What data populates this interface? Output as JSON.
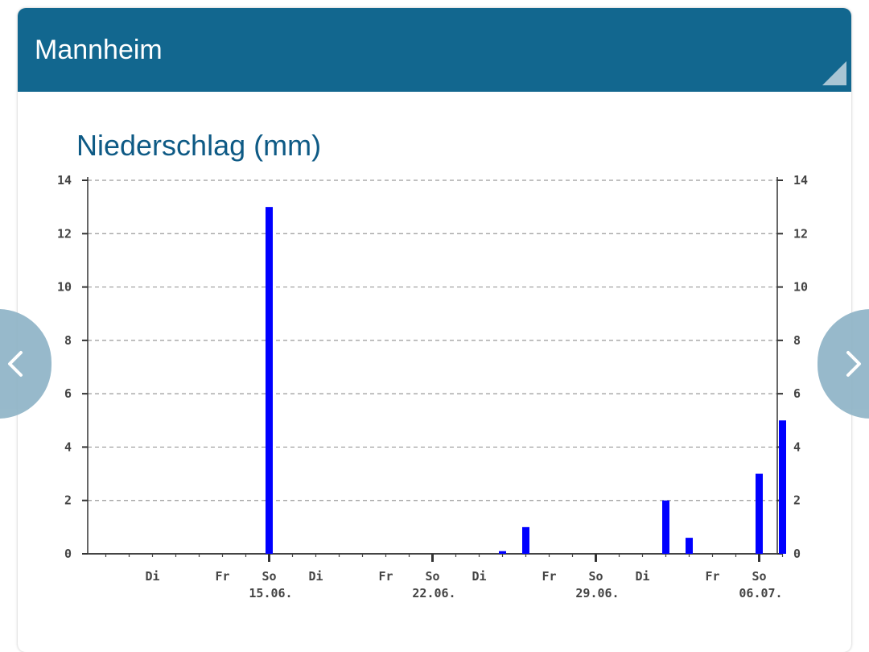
{
  "header": {
    "title": "Mannheim"
  },
  "chart_data": {
    "type": "bar",
    "title": "Niederschlag (mm)",
    "ylim": [
      0,
      14
    ],
    "yticks": [
      "0",
      "2",
      "4",
      "6",
      "8",
      "10",
      "12",
      "14"
    ],
    "grid": true,
    "x_tick_labels": [
      {
        "day": 3,
        "label": "Di"
      },
      {
        "day": 6,
        "label": "Fr"
      },
      {
        "day": 8,
        "label": "So",
        "date": "15.06."
      },
      {
        "day": 10,
        "label": "Di"
      },
      {
        "day": 13,
        "label": "Fr"
      },
      {
        "day": 15,
        "label": "So",
        "date": "22.06."
      },
      {
        "day": 17,
        "label": "Di"
      },
      {
        "day": 20,
        "label": "Fr"
      },
      {
        "day": 22,
        "label": "So",
        "date": "29.06."
      },
      {
        "day": 24,
        "label": "Di"
      },
      {
        "day": 27,
        "label": "Fr"
      },
      {
        "day": 29,
        "label": "So",
        "date": "06.07."
      }
    ],
    "values": [
      0,
      0,
      0,
      0,
      0,
      0,
      0,
      13,
      0,
      0,
      0,
      0,
      0,
      0,
      0,
      0,
      0,
      0.1,
      1.0,
      0,
      0,
      0,
      0,
      0,
      2.0,
      0.6,
      0,
      0,
      3.0,
      5.0
    ],
    "bar_color": "#0000ff"
  },
  "nav": {
    "prev_icon": "chevron-left-icon",
    "next_icon": "chevron-right-icon"
  }
}
